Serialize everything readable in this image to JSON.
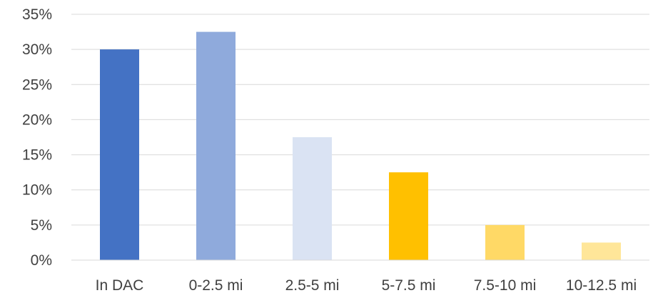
{
  "chart_data": {
    "type": "bar",
    "title": "",
    "xlabel": "",
    "ylabel": "",
    "categories": [
      "In DAC",
      "0-2.5 mi",
      "2.5-5 mi",
      "5-7.5 mi",
      "7.5-10 mi",
      "10-12.5 mi"
    ],
    "values": [
      30,
      32.5,
      17.5,
      12.5,
      5,
      2.5
    ],
    "value_unit": "%",
    "bar_colors": [
      "#4472c4",
      "#8faadc",
      "#dae3f3",
      "#ffc000",
      "#ffd966",
      "#ffe699"
    ],
    "ylim": [
      0,
      35
    ],
    "yticks": [
      0,
      5,
      10,
      15,
      20,
      25,
      30,
      35
    ],
    "ytick_labels": [
      "0%",
      "5%",
      "10%",
      "15%",
      "20%",
      "25%",
      "30%",
      "35%"
    ],
    "grid": true,
    "legend": "none"
  }
}
